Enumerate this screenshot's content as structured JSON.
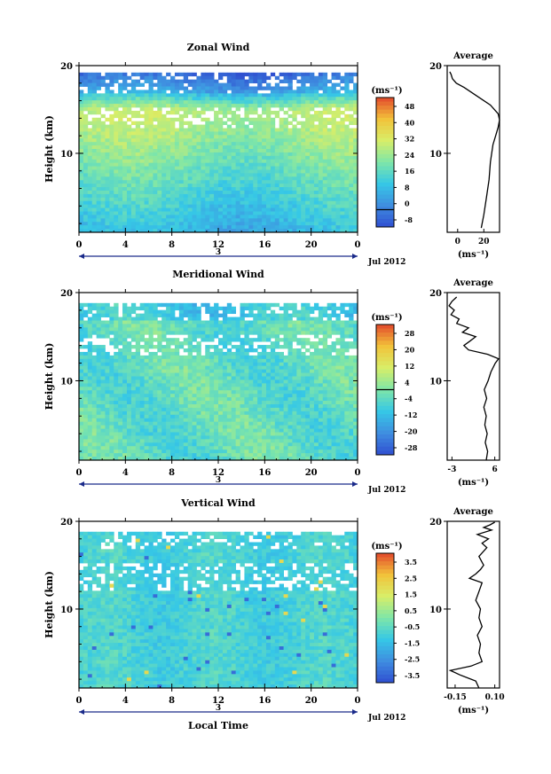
{
  "x_axis_title": "Local Time",
  "time_ticks": [
    "0",
    "4",
    "8",
    "12",
    "16",
    "20",
    "0"
  ],
  "date_marker": "3",
  "date_label": "Jul 2012",
  "y_axis_label": "Height (km)",
  "height_ticks": [
    "20",
    "10"
  ],
  "avg_title": "Average",
  "unit_label": "(ms⁻¹)",
  "colors": {
    "field_base": [
      "#2f4fd0",
      "#3f8ee0",
      "#36c8e6",
      "#7fe6a8",
      "#d8ee68",
      "#f2c23a",
      "#e3492c"
    ],
    "contour": "#000000",
    "frame": "#000000"
  },
  "chart_data": [
    {
      "type": "heatmap",
      "title": "Zonal Wind",
      "xlabel": "",
      "ylabel": "Height (km)",
      "xlim": [
        0,
        24
      ],
      "ylim": [
        1,
        20
      ],
      "colorbar_unit": "(ms⁻¹)",
      "colorbar_ticks": [
        "48",
        "40",
        "32",
        "24",
        "16",
        "8",
        "0",
        "-8"
      ],
      "colorbar_range": [
        -8,
        52
      ],
      "zero_line": 0,
      "average_profile": {
        "xticks": [
          "0",
          "20"
        ],
        "xlim": [
          -8,
          32
        ],
        "xlabel": "(ms⁻¹)",
        "height": [
          1.5,
          3,
          5,
          7,
          9,
          11,
          12,
          13,
          13.8,
          14.5,
          15.5,
          16.5,
          17.5,
          18,
          18.5,
          19,
          19.3
        ],
        "value": [
          18,
          20,
          22,
          24,
          25,
          27,
          29,
          31,
          32,
          31,
          25,
          15,
          5,
          -1,
          -4,
          -5,
          -6
        ]
      }
    },
    {
      "type": "heatmap",
      "title": "Meridional Wind",
      "xlabel": "",
      "ylabel": "Height (km)",
      "xlim": [
        0,
        24
      ],
      "ylim": [
        1,
        20
      ],
      "colorbar_unit": "(ms⁻¹)",
      "colorbar_ticks": [
        "28",
        "20",
        "12",
        "4",
        "-4",
        "-12",
        "-20",
        "-28"
      ],
      "colorbar_range": [
        -32,
        32
      ],
      "zero_line": 0,
      "average_profile": {
        "xticks": [
          "-3",
          "6"
        ],
        "xlim": [
          -4,
          7
        ],
        "xlabel": "(ms⁻¹)",
        "height": [
          1,
          2,
          3,
          4,
          5,
          6,
          7,
          8,
          9,
          10,
          11,
          12,
          12.5,
          13,
          13.5,
          14,
          14.5,
          15,
          15.5,
          16,
          16.5,
          17,
          17.5,
          18,
          18.5,
          19,
          19.5
        ],
        "value": [
          4.2,
          4.5,
          4.0,
          4.4,
          3.9,
          4.2,
          3.7,
          4.3,
          3.8,
          4.6,
          5.2,
          6.1,
          6.8,
          4.5,
          0.5,
          -0.5,
          0.8,
          2.0,
          -0.8,
          0.5,
          -2.0,
          -1.5,
          -3.2,
          -2.5,
          -3.6,
          -3.0,
          -2.0
        ]
      }
    },
    {
      "type": "heatmap",
      "title": "Vertical Wind",
      "xlabel": "Local Time",
      "ylabel": "Height (km)",
      "xlim": [
        0,
        24
      ],
      "ylim": [
        1,
        20
      ],
      "colorbar_unit": "(ms⁻¹)",
      "colorbar_ticks": [
        "3.5",
        "2.5",
        "1.5",
        "0.5",
        "-0.5",
        "-1.5",
        "-2.5",
        "-3.5"
      ],
      "colorbar_range": [
        -4,
        4
      ],
      "zero_line": null,
      "average_profile": {
        "xticks": [
          "-0.15",
          "0.10"
        ],
        "xlim": [
          -0.2,
          0.13
        ],
        "xlabel": "(ms⁻¹)",
        "height": [
          1,
          1.8,
          2.5,
          3,
          3.5,
          4,
          5,
          6,
          7,
          8,
          9,
          10,
          11,
          12,
          13,
          13.5,
          14,
          14.5,
          15,
          16,
          17,
          17.5,
          18,
          18.5,
          19,
          19.3,
          19.6,
          19.9
        ],
        "value": [
          0.0,
          -0.02,
          -0.12,
          -0.18,
          -0.05,
          0.02,
          0.0,
          0.01,
          -0.01,
          0.02,
          0.0,
          0.01,
          -0.02,
          0.0,
          0.02,
          -0.06,
          -0.02,
          0.01,
          0.03,
          0.0,
          0.05,
          0.02,
          0.06,
          -0.01,
          0.08,
          0.03,
          0.07,
          0.1
        ]
      }
    }
  ]
}
